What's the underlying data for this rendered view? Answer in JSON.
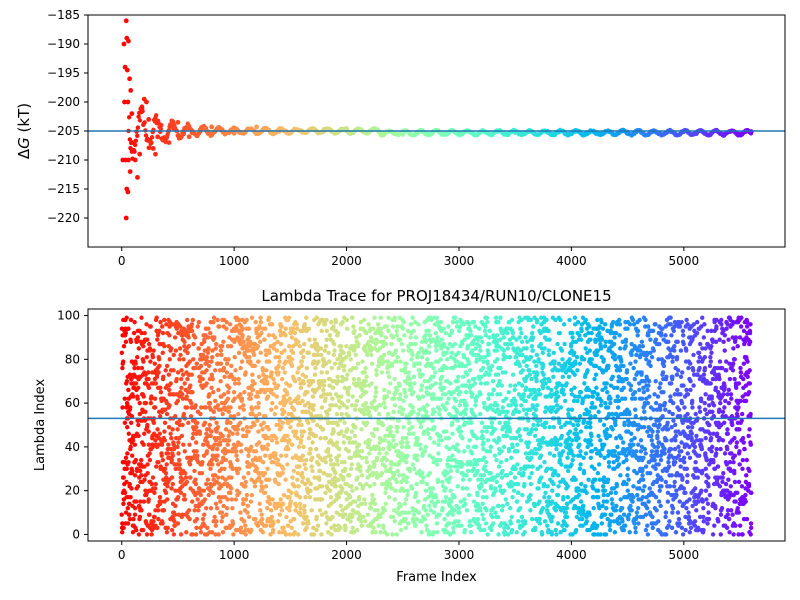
{
  "chart_data": [
    {
      "type": "scatter",
      "title": "",
      "xlabel": "",
      "ylabel": "ΔG (kT)",
      "ylabel_italic_symbol": "G",
      "xlim": [
        -300,
        5900
      ],
      "ylim": [
        -225,
        -185
      ],
      "xticks": [
        0,
        1000,
        2000,
        3000,
        4000,
        5000
      ],
      "yticks": [
        -185,
        -190,
        -195,
        -200,
        -205,
        -210,
        -215,
        -220
      ],
      "xtick_labels": [
        "0",
        "1000",
        "2000",
        "3000",
        "4000",
        "5000"
      ],
      "ytick_labels": [
        "−185",
        "−190",
        "−195",
        "−200",
        "−205",
        "−210",
        "−215",
        "−220"
      ],
      "hline": -205,
      "hline_color": "#1f77b4",
      "colormap": "rainbow (red at start → violet at end)",
      "x_max": 5600,
      "series": [
        {
          "points": [
            [
              40,
              -186
            ],
            [
              20,
              -190
            ],
            [
              45,
              -189
            ],
            [
              60,
              -189.5
            ],
            [
              30,
              -194
            ],
            [
              50,
              -194.5
            ],
            [
              70,
              -196
            ],
            [
              25,
              -200
            ],
            [
              55,
              -200
            ],
            [
              80,
              -198
            ],
            [
              10,
              -210
            ],
            [
              35,
              -210
            ],
            [
              60,
              -210
            ],
            [
              75,
              -212
            ],
            [
              45,
              -215
            ],
            [
              55,
              -215.5
            ],
            [
              40,
              -220
            ],
            [
              90,
              -202
            ],
            [
              100,
              -207
            ],
            [
              120,
              -210
            ],
            [
              140,
              -213
            ],
            [
              160,
              -209
            ],
            [
              180,
              -201
            ],
            [
              200,
              -199.5
            ],
            [
              220,
              -200
            ],
            [
              240,
              -203
            ],
            [
              260,
              -207
            ],
            [
              280,
              -208
            ],
            [
              300,
              -209
            ],
            [
              320,
              -206
            ],
            [
              350,
              -204
            ],
            [
              380,
              -206.5
            ],
            [
              420,
              -207
            ],
            [
              460,
              -204.5
            ],
            [
              500,
              -203.5
            ],
            [
              550,
              -205.5
            ],
            [
              600,
              -206
            ],
            [
              700,
              -205
            ],
            [
              800,
              -204.3
            ],
            [
              900,
              -205.2
            ],
            [
              1000,
              -205.4
            ],
            [
              1200,
              -204.3
            ],
            [
              1400,
              -205.1
            ],
            [
              1600,
              -205
            ],
            [
              1800,
              -204.7
            ],
            [
              2000,
              -204.6
            ],
            [
              2200,
              -205.2
            ],
            [
              2500,
              -205.6
            ],
            [
              3000,
              -205.4
            ],
            [
              3500,
              -205.3
            ],
            [
              4000,
              -205.4
            ],
            [
              4500,
              -205.2
            ],
            [
              5000,
              -205.1
            ],
            [
              5600,
              -205.1
            ]
          ]
        }
      ]
    },
    {
      "type": "scatter",
      "title": "Lambda Trace for PROJ18434/RUN10/CLONE15",
      "xlabel": "Frame Index",
      "ylabel": "Lambda Index",
      "xlim": [
        -300,
        5900
      ],
      "ylim": [
        -3,
        103
      ],
      "xticks": [
        0,
        1000,
        2000,
        3000,
        4000,
        5000
      ],
      "yticks": [
        0,
        20,
        40,
        60,
        80,
        100
      ],
      "xtick_labels": [
        "0",
        "1000",
        "2000",
        "3000",
        "4000",
        "5000"
      ],
      "ytick_labels": [
        "0",
        "20",
        "40",
        "60",
        "80",
        "100"
      ],
      "hline": 53,
      "hline_color": "#1f77b4",
      "colormap": "rainbow (red at start → violet at end)",
      "x_range": [
        0,
        5600
      ],
      "y_range": [
        0,
        99
      ],
      "point_count": 5600
    }
  ]
}
